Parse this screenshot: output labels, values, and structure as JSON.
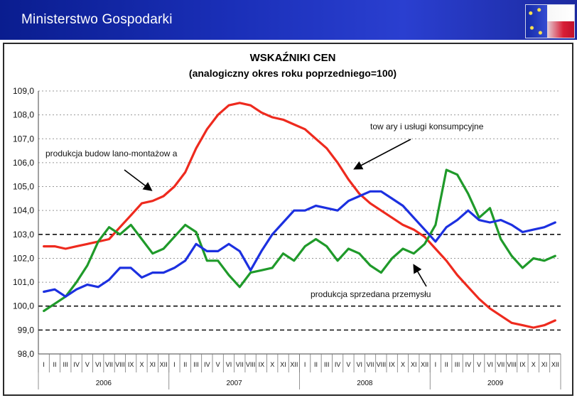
{
  "header": {
    "title": "Ministerstwo Gospodarki",
    "flag_icon": "poland-eu-flag-icon"
  },
  "chart_data": {
    "type": "line",
    "title": "WSKAŹNIKI CEN",
    "subtitle": "(analogiczny okres roku poprzedniego=100)",
    "xlabel": "",
    "ylabel": "",
    "ylim": [
      98.0,
      109.0
    ],
    "yticks": [
      "109,0",
      "108,0",
      "107,0",
      "106,0",
      "105,0",
      "104,0",
      "103,0",
      "102,0",
      "101,0",
      "100,0",
      "99,0",
      "98,0"
    ],
    "reference_lines": [
      100,
      103,
      99
    ],
    "months": [
      "I",
      "II",
      "III",
      "IV",
      "V",
      "VI",
      "VII",
      "VIII",
      "IX",
      "X",
      "XI",
      "XII",
      "I",
      "II",
      "III",
      "IV",
      "V",
      "VI",
      "VII",
      "VIII",
      "IX",
      "X",
      "XI",
      "XII",
      "I",
      "II",
      "III",
      "IV",
      "V",
      "VI",
      "VII",
      "VIII",
      "IX",
      "X",
      "XI",
      "XII",
      "I",
      "II",
      "III",
      "IV",
      "V",
      "VI",
      "VII",
      "VIII",
      "IX",
      "X",
      "XI",
      "XII"
    ],
    "years": [
      "2006",
      "2007",
      "2008",
      "2009"
    ],
    "series": [
      {
        "name": "towary i usługi konsumpcyjne",
        "color": "#ee2a1e",
        "values": [
          102.5,
          102.5,
          102.4,
          102.5,
          102.6,
          102.7,
          102.8,
          103.3,
          103.8,
          104.3,
          104.4,
          104.6,
          105.0,
          105.6,
          106.6,
          107.4,
          108.0,
          108.4,
          108.5,
          108.4,
          108.1,
          107.9,
          107.8,
          107.6,
          107.4,
          107.0,
          106.6,
          106.0,
          105.3,
          104.7,
          104.3,
          104.0,
          103.7,
          103.4,
          103.2,
          102.9,
          102.4,
          101.9,
          101.3,
          100.8,
          100.3,
          99.9,
          99.6,
          99.3,
          99.2,
          99.1,
          99.2,
          99.4
        ]
      },
      {
        "name": "produkcja sprzedana przemysłu",
        "color": "#1f9a2a",
        "values": [
          99.8,
          100.1,
          100.4,
          101.0,
          101.7,
          102.7,
          103.3,
          103.0,
          103.4,
          102.8,
          102.2,
          102.4,
          102.9,
          103.4,
          103.1,
          101.9,
          101.9,
          101.3,
          100.8,
          101.4,
          101.5,
          101.6,
          102.2,
          101.9,
          102.5,
          102.8,
          102.5,
          101.9,
          102.4,
          102.2,
          101.7,
          101.4,
          102.0,
          102.4,
          102.2,
          102.6,
          103.4,
          105.7,
          105.5,
          104.7,
          103.7,
          104.1,
          102.8,
          102.1,
          101.6,
          102.0,
          101.9,
          102.1
        ]
      },
      {
        "name": "produkcja budowlano-montażowa",
        "color": "#1c30e0",
        "values": [
          100.6,
          100.7,
          100.4,
          100.7,
          100.9,
          100.8,
          101.1,
          101.6,
          101.6,
          101.2,
          101.4,
          101.4,
          101.6,
          101.9,
          102.6,
          102.3,
          102.3,
          102.6,
          102.3,
          101.5,
          102.3,
          103.0,
          103.5,
          104.0,
          104.0,
          104.2,
          104.1,
          104.0,
          104.4,
          104.6,
          104.8,
          104.8,
          104.5,
          104.2,
          103.7,
          103.2,
          102.7,
          103.3,
          103.6,
          104.0,
          103.6,
          103.5,
          103.6,
          103.4,
          103.1,
          103.2,
          103.3,
          103.5
        ]
      }
    ],
    "annotations": [
      {
        "text": "tow ary i usługi konsumpcyjne",
        "points_to": "towary i usługi konsumpcyjne"
      },
      {
        "text": "produkcja budow lano-montażow a",
        "points_to": "produkcja budowlano-montażowa"
      },
      {
        "text": "produkcja sprzedana przemysłu",
        "points_to": "produkcja sprzedana przemysłu"
      }
    ]
  }
}
